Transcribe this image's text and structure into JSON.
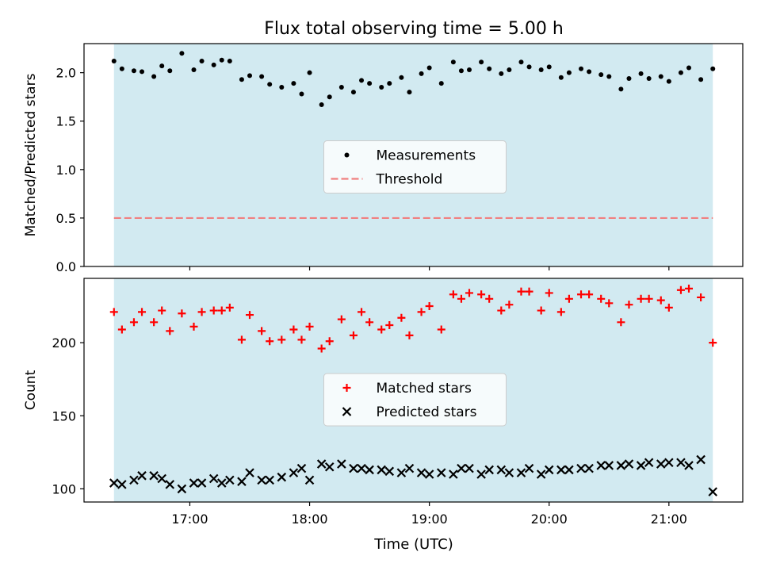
{
  "title": "Flux total observing time = 5.00 h",
  "xlabel": "Time (UTC)",
  "x_ticks": [
    "17:00",
    "18:00",
    "19:00",
    "20:00",
    "21:00"
  ],
  "chart_data": [
    {
      "type": "scatter",
      "ylabel": "Matched/Predicted stars",
      "ylim": [
        0,
        2.3
      ],
      "x_range": [
        "16:22",
        "21:22"
      ],
      "y_ticks": [
        "0.0",
        "0.5",
        "1.0",
        "1.5",
        "2.0"
      ],
      "shaded_span": {
        "from": "16:22",
        "to": "21:22",
        "color": "#add8e6"
      },
      "legend": {
        "position": "center",
        "entries": [
          "Measurements",
          "Threshold"
        ]
      },
      "threshold": {
        "name": "Threshold",
        "value": 0.5,
        "color": "#f08080",
        "style": "dashed"
      },
      "series": [
        {
          "name": "Measurements",
          "marker": "dot",
          "color": "#000000",
          "x": [
            "16:22",
            "16:26",
            "16:32",
            "16:36",
            "16:42",
            "16:46",
            "16:50",
            "16:56",
            "17:02",
            "17:06",
            "17:12",
            "17:16",
            "17:20",
            "17:26",
            "17:30",
            "17:36",
            "17:40",
            "17:46",
            "17:52",
            "17:56",
            "18:00",
            "18:06",
            "18:10",
            "18:16",
            "18:22",
            "18:26",
            "18:30",
            "18:36",
            "18:40",
            "18:46",
            "18:50",
            "18:56",
            "19:00",
            "19:06",
            "19:12",
            "19:16",
            "19:20",
            "19:26",
            "19:30",
            "19:36",
            "19:40",
            "19:46",
            "19:50",
            "19:56",
            "20:00",
            "20:06",
            "20:10",
            "20:16",
            "20:20",
            "20:26",
            "20:30",
            "20:36",
            "20:40",
            "20:46",
            "20:50",
            "20:56",
            "21:00",
            "21:06",
            "21:10",
            "21:16",
            "21:22"
          ],
          "y": [
            2.12,
            2.04,
            2.02,
            2.01,
            1.96,
            2.07,
            2.02,
            2.2,
            2.03,
            2.12,
            2.08,
            2.13,
            2.12,
            1.93,
            1.97,
            1.96,
            1.88,
            1.85,
            1.89,
            1.78,
            2.0,
            1.67,
            1.75,
            1.85,
            1.8,
            1.92,
            1.89,
            1.85,
            1.89,
            1.95,
            1.8,
            1.99,
            2.05,
            1.89,
            2.11,
            2.02,
            2.03,
            2.11,
            2.04,
            1.99,
            2.03,
            2.11,
            2.06,
            2.03,
            2.06,
            1.95,
            2.0,
            2.04,
            2.01,
            1.98,
            1.96,
            1.83,
            1.94,
            1.99,
            1.94,
            1.96,
            1.91,
            2.0,
            2.05,
            1.93,
            2.04
          ]
        }
      ]
    },
    {
      "type": "scatter",
      "ylabel": "Count",
      "ylim": [
        91,
        244
      ],
      "x_range": [
        "16:22",
        "21:22"
      ],
      "y_ticks": [
        "100",
        "150",
        "200"
      ],
      "shaded_span": {
        "from": "16:22",
        "to": "21:22",
        "color": "#add8e6"
      },
      "legend": {
        "position": "center",
        "entries": [
          "Matched stars",
          "Predicted stars"
        ]
      },
      "series": [
        {
          "name": "Matched stars",
          "marker": "plus",
          "color": "#ff0000",
          "x": [
            "16:22",
            "16:26",
            "16:32",
            "16:36",
            "16:42",
            "16:46",
            "16:50",
            "16:56",
            "17:02",
            "17:06",
            "17:12",
            "17:16",
            "17:20",
            "17:26",
            "17:30",
            "17:36",
            "17:40",
            "17:46",
            "17:52",
            "17:56",
            "18:00",
            "18:06",
            "18:10",
            "18:16",
            "18:22",
            "18:26",
            "18:30",
            "18:36",
            "18:40",
            "18:46",
            "18:50",
            "18:56",
            "19:00",
            "19:06",
            "19:12",
            "19:16",
            "19:20",
            "19:26",
            "19:30",
            "19:36",
            "19:40",
            "19:46",
            "19:50",
            "19:56",
            "20:00",
            "20:06",
            "20:10",
            "20:16",
            "20:20",
            "20:26",
            "20:30",
            "20:36",
            "20:40",
            "20:46",
            "20:50",
            "20:56",
            "21:00",
            "21:06",
            "21:10",
            "21:16",
            "21:22"
          ],
          "y": [
            221,
            209,
            214,
            221,
            214,
            222,
            208,
            220,
            211,
            221,
            222,
            222,
            224,
            202,
            219,
            208,
            201,
            202,
            209,
            202,
            211,
            196,
            201,
            216,
            205,
            221,
            214,
            209,
            212,
            217,
            205,
            221,
            225,
            209,
            233,
            230,
            234,
            233,
            230,
            222,
            226,
            235,
            235,
            222,
            234,
            221,
            230,
            233,
            233,
            230,
            227,
            214,
            226,
            230,
            230,
            229,
            224,
            236,
            237,
            231,
            200
          ]
        },
        {
          "name": "Predicted stars",
          "marker": "x",
          "color": "#000000",
          "x": [
            "16:22",
            "16:26",
            "16:32",
            "16:36",
            "16:42",
            "16:46",
            "16:50",
            "16:56",
            "17:02",
            "17:06",
            "17:12",
            "17:16",
            "17:20",
            "17:26",
            "17:30",
            "17:36",
            "17:40",
            "17:46",
            "17:52",
            "17:56",
            "18:00",
            "18:06",
            "18:10",
            "18:16",
            "18:22",
            "18:26",
            "18:30",
            "18:36",
            "18:40",
            "18:46",
            "18:50",
            "18:56",
            "19:00",
            "19:06",
            "19:12",
            "19:16",
            "19:20",
            "19:26",
            "19:30",
            "19:36",
            "19:40",
            "19:46",
            "19:50",
            "19:56",
            "20:00",
            "20:06",
            "20:10",
            "20:16",
            "20:20",
            "20:26",
            "20:30",
            "20:36",
            "20:40",
            "20:46",
            "20:50",
            "20:56",
            "21:00",
            "21:06",
            "21:10",
            "21:16",
            "21:22"
          ],
          "y": [
            104,
            103,
            106,
            109,
            109,
            107,
            103,
            100,
            104,
            104,
            107,
            104,
            106,
            105,
            111,
            106,
            106,
            108,
            111,
            114,
            106,
            117,
            115,
            117,
            114,
            114,
            113,
            113,
            112,
            111,
            114,
            111,
            110,
            111,
            110,
            114,
            114,
            110,
            113,
            113,
            111,
            111,
            114,
            110,
            113,
            113,
            113,
            114,
            114,
            116,
            116,
            116,
            117,
            116,
            118,
            117,
            118,
            118,
            116,
            120,
            98
          ]
        }
      ]
    }
  ]
}
